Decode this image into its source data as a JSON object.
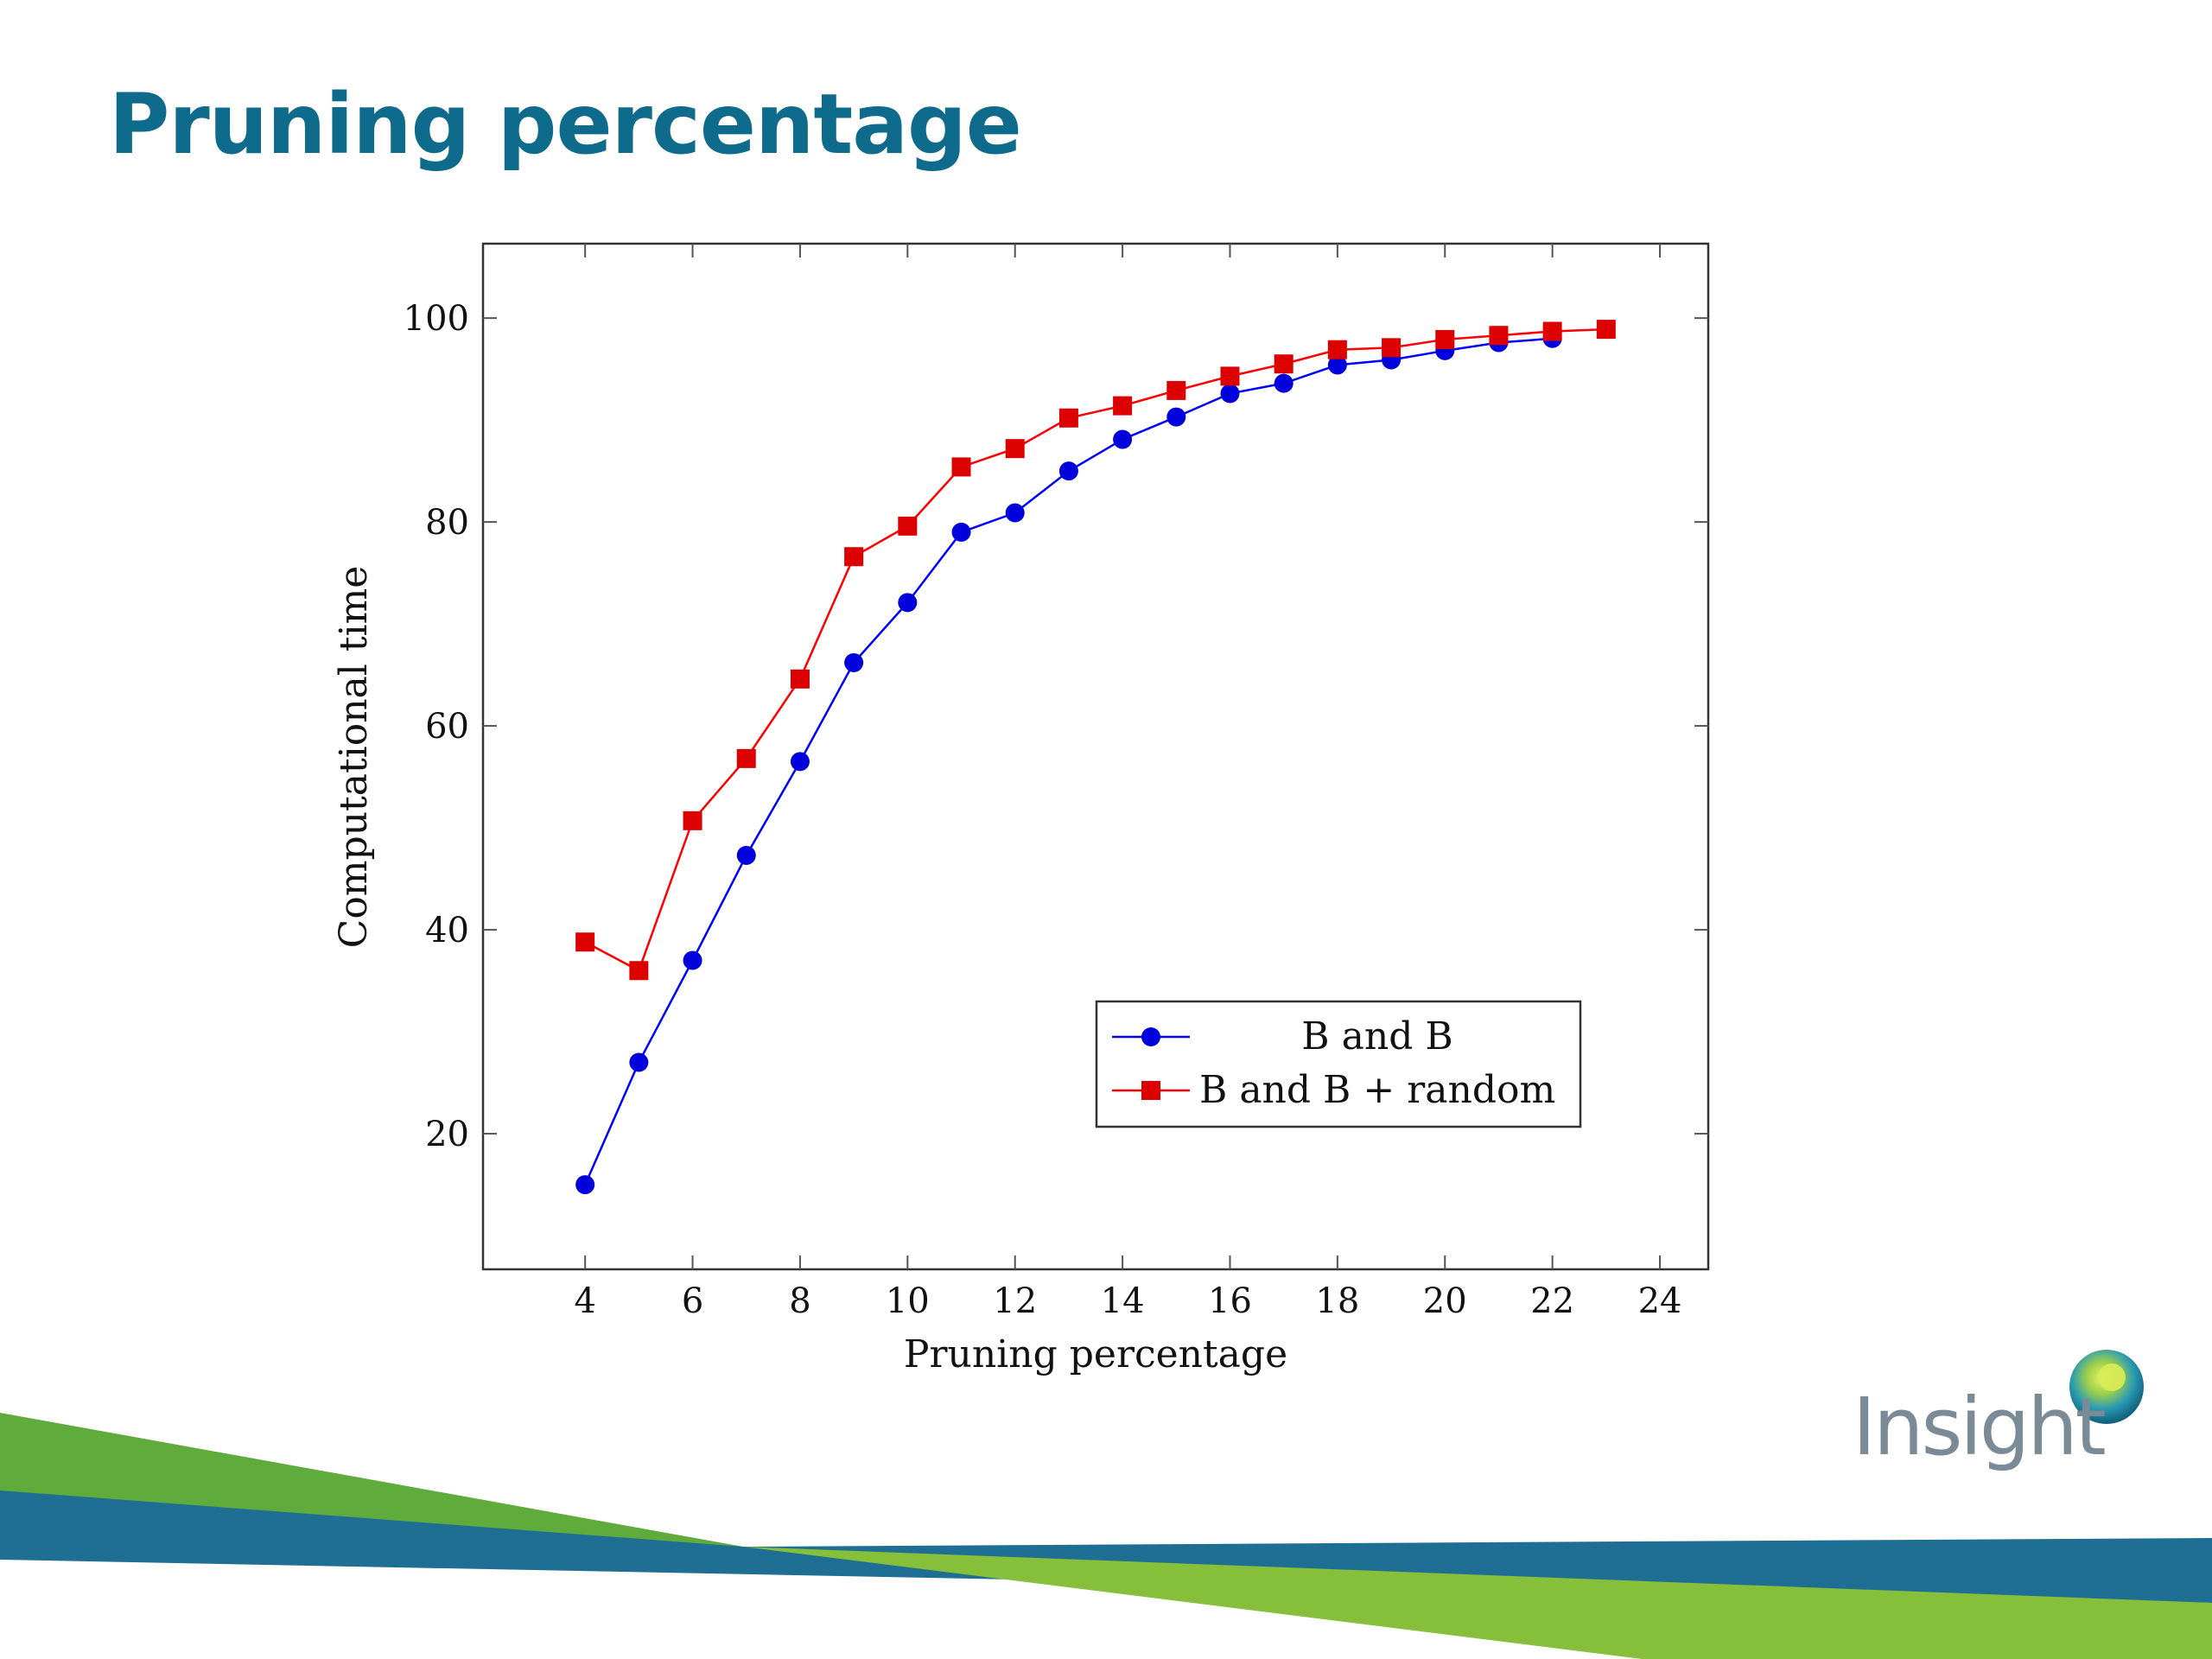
{
  "slide": {
    "title": "Pruning percentage",
    "logo_text": "Insight",
    "title_color": "#0f6b8c",
    "brand_green": "#5fab3c",
    "brand_blue": "#1f6e94"
  },
  "chart_data": {
    "type": "line",
    "title": "",
    "xlabel": "Pruning percentage",
    "ylabel": "Computational time",
    "xlim": [
      2.1,
      24.9
    ],
    "ylim": [
      6.7,
      107.3
    ],
    "x_ticks": [
      4,
      6,
      8,
      10,
      12,
      14,
      16,
      18,
      20,
      22,
      24
    ],
    "y_ticks": [
      20,
      40,
      60,
      80,
      100
    ],
    "grid": false,
    "legend_position": "bottom-right",
    "series": [
      {
        "name": "B and B",
        "color": "#0000ff",
        "marker": "circle",
        "x": [
          4,
          5,
          6,
          7,
          8,
          9,
          10,
          11,
          12,
          13,
          14,
          15,
          16,
          17,
          18,
          19,
          20,
          21,
          22
        ],
        "y": [
          15,
          27,
          37,
          47.3,
          56.5,
          66.2,
          72.1,
          79,
          80.9,
          85,
          88.1,
          90.3,
          92.6,
          93.6,
          95.4,
          95.9,
          96.8,
          97.6,
          98
        ]
      },
      {
        "name": "B and B + random",
        "color": "#ff0000",
        "marker": "square",
        "x": [
          4,
          5,
          6,
          7,
          8,
          9,
          10,
          11,
          12,
          13,
          14,
          15,
          16,
          17,
          18,
          19,
          20,
          21,
          22,
          23
        ],
        "y": [
          38.8,
          36,
          50.7,
          56.8,
          64.6,
          76.6,
          79.6,
          85.4,
          87.2,
          90.2,
          91.4,
          92.9,
          94.3,
          95.5,
          96.9,
          97.1,
          97.9,
          98.3,
          98.7,
          98.9
        ]
      }
    ]
  }
}
